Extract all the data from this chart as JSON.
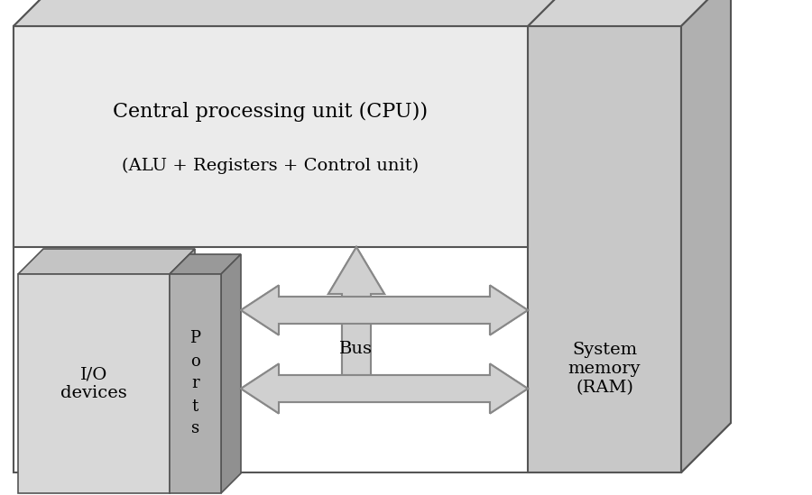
{
  "bg_color": "#ffffff",
  "font_color": "#000000",
  "edge_color": "#555555",
  "cpu_label1": "Central processing unit (CPU))",
  "cpu_label2": "(ALU + Registers + Control unit)",
  "io_label": "I/O\ndevices",
  "ports_label": "P\no\nr\nt\ns",
  "memory_label": "System\nmemory\n(RAM)",
  "bus_label": "Bus",
  "outer_front_color": "#ffffff",
  "outer_top_color": "#d4d4d4",
  "outer_right_color": "#b8b8b8",
  "cpu_face_color": "#ebebeb",
  "mem_face_color": "#c8c8c8",
  "mem_top_color": "#d4d4d4",
  "mem_right_color": "#b0b0b0",
  "io_face_color": "#d8d8d8",
  "io_top_color": "#c4c4c4",
  "io_right_color": "#a8a8a8",
  "ports_face_color": "#b0b0b0",
  "ports_top_color": "#999999",
  "ports_right_color": "#909090",
  "arrow_fill": "#d0d0d0",
  "arrow_edge": "#888888",
  "title_fontsize": 16,
  "label_fontsize": 14,
  "ports_fontsize": 13
}
